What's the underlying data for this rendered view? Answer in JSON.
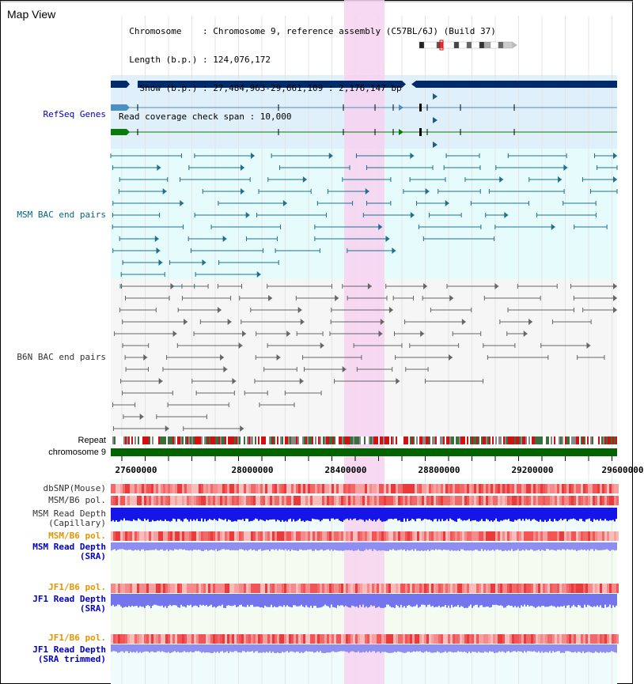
{
  "header": {
    "title": "Map View",
    "info_lines": [
      "  Chromosome    : Chromosome 9, reference assembly (C57BL/6J) (Build 37)",
      "  Length (b.p.) : 124,076,172",
      "    Show (b.p.) : 27,484,963-29,661,109 : 2,176,147 bp",
      "Read coverage check span : 10,000"
    ]
  },
  "tracks": {
    "refseq": "RefSeq Genes",
    "msm_bac": "MSM BAC end pairs",
    "b6n_bac": "B6N BAC end pairs",
    "repeat": "Repeat",
    "chromosome": "chromosome 9",
    "dbsnp": "dbSNP(Mouse)",
    "msm_pol": "MSM/B6 pol.",
    "msm_depth_cap_1": "MSM Read Depth",
    "msm_depth_cap_2": "(Capillary)",
    "msm_pol_sra": "MSM/B6 pol.",
    "msm_depth_sra_1": "MSM Read Depth",
    "msm_depth_sra_2": "(SRA)",
    "jf1_pol": "JF1/B6 pol.",
    "jf1_depth_1": "JF1 Read Depth",
    "jf1_depth_2": "(SRA)",
    "jf1_pol_trim": "JF1/B6 pol.",
    "jf1_trim_1": "JF1 Read Depth",
    "jf1_trim_2": "(SRA trimmed)"
  },
  "axis": {
    "ticks": [
      "27600000",
      "28000000",
      "28400000",
      "28800000",
      "29200000",
      "29600000"
    ]
  },
  "colors": {
    "refseq_label": "#0000aa",
    "msm_label": "#006680",
    "b6n_label": "#333333",
    "pol_label": "#e69500",
    "sra_label": "#0000cc",
    "highlight": "#f7d2f0",
    "chromosome_bar": "#006400",
    "gene_navy": "#002a6a"
  }
}
